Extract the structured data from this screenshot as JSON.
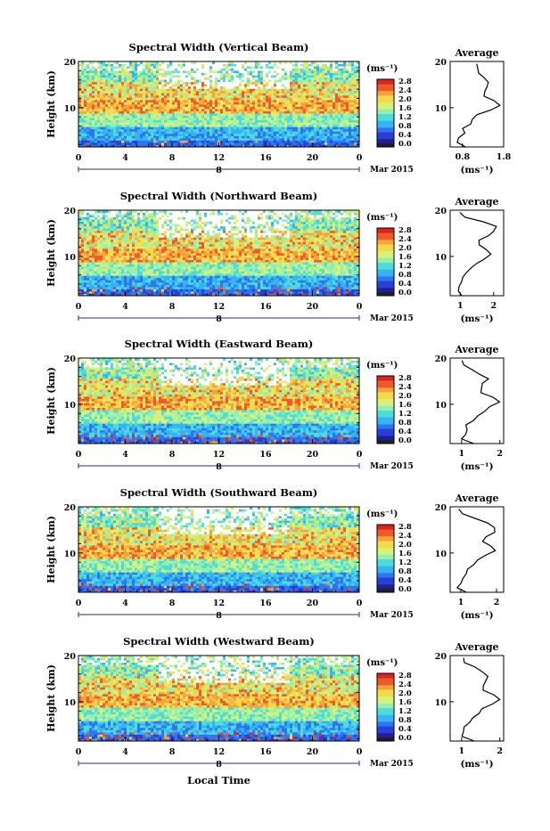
{
  "figure": {
    "x_axis_label": "Local Time",
    "date_label": "Mar 2015",
    "day_label": "8",
    "colorbar_unit": "(ms⁻¹)",
    "profile_unit": "(ms⁻¹)",
    "profile_title": "Average",
    "y_axis_label": "Height (km)",
    "colorbar_ticks": [
      "0.0",
      "0.4",
      "0.8",
      "1.2",
      "1.6",
      "2.0",
      "2.4",
      "2.8"
    ],
    "colormap": [
      "#1f1f9a",
      "#2a3fd6",
      "#2f74f0",
      "#34b4f4",
      "#4fdcd8",
      "#93f0b0",
      "#d6f27a",
      "#f6d94a",
      "#f7a23a",
      "#ee5a2a",
      "#d8261e"
    ],
    "blank_color": "#ffffff"
  },
  "chart_data": [
    {
      "type": "heatmap",
      "title": "Spectral Width (Vertical Beam)",
      "x_ticks": [
        "0",
        "4",
        "8",
        "12",
        "16",
        "20",
        "0"
      ],
      "xlim": [
        0,
        24
      ],
      "y_ticks": [
        "20",
        "10"
      ],
      "ylim": [
        1.5,
        20
      ],
      "colorbar_range": [
        0.0,
        2.8
      ],
      "profile": {
        "title": "Average",
        "x_ticks": [
          "0.8",
          "1.8"
        ],
        "xlim": [
          0.5,
          1.8
        ],
        "y_ticks": [
          "20",
          "10"
        ],
        "heights": [
          1.5,
          2.5,
          3.5,
          4.5,
          5.5,
          6.5,
          7.5,
          8.5,
          9.5,
          10.5,
          11.5,
          12.5,
          13.5,
          14.5,
          15.5,
          16.5,
          17.5,
          18.5,
          19.5
        ],
        "values": [
          0.9,
          0.7,
          0.75,
          0.8,
          0.85,
          0.95,
          1.05,
          1.15,
          1.45,
          1.75,
          1.55,
          1.35,
          1.3,
          1.4,
          1.45,
          1.3,
          1.2,
          1.15,
          1.1
        ]
      }
    },
    {
      "type": "heatmap",
      "title": "Spectral Width (Northward Beam)",
      "x_ticks": [
        "0",
        "4",
        "8",
        "12",
        "16",
        "20",
        "0"
      ],
      "xlim": [
        0,
        24
      ],
      "y_ticks": [
        "20",
        "10"
      ],
      "ylim": [
        1.5,
        20
      ],
      "colorbar_range": [
        0.0,
        2.8
      ],
      "profile": {
        "title": "Average",
        "x_ticks": [
          "1",
          "2"
        ],
        "xlim": [
          0.7,
          2.3
        ],
        "y_ticks": [
          "20",
          "10"
        ],
        "heights": [
          1.5,
          2.5,
          3.5,
          4.5,
          5.5,
          6.5,
          7.5,
          8.5,
          9.5,
          10.5,
          11.5,
          12.5,
          13.5,
          14.5,
          15.5,
          16.5,
          17.5,
          18.5,
          19.5
        ],
        "values": [
          1.1,
          0.9,
          1.0,
          1.05,
          1.1,
          1.2,
          1.35,
          1.5,
          1.7,
          1.95,
          1.75,
          1.55,
          1.6,
          1.9,
          2.05,
          2.1,
          1.7,
          1.2,
          1.0
        ]
      }
    },
    {
      "type": "heatmap",
      "title": "Spectral Width (Eastward Beam)",
      "x_ticks": [
        "0",
        "4",
        "8",
        "12",
        "16",
        "20",
        "0"
      ],
      "xlim": [
        0,
        24
      ],
      "y_ticks": [
        "20",
        "10"
      ],
      "ylim": [
        1.5,
        20
      ],
      "colorbar_range": [
        0.0,
        2.8
      ],
      "profile": {
        "title": "Average",
        "x_ticks": [
          "1",
          "2"
        ],
        "xlim": [
          0.7,
          2.1
        ],
        "y_ticks": [
          "20",
          "10"
        ],
        "heights": [
          1.5,
          2.5,
          3.5,
          4.5,
          5.5,
          6.5,
          7.5,
          8.5,
          9.5,
          10.5,
          11.5,
          12.5,
          13.5,
          14.5,
          15.5,
          16.5,
          17.5,
          18.5,
          19.5
        ],
        "values": [
          1.3,
          1.05,
          1.1,
          1.1,
          1.15,
          1.25,
          1.4,
          1.55,
          1.75,
          1.95,
          1.8,
          1.55,
          1.5,
          1.6,
          1.75,
          1.5,
          1.3,
          1.1,
          1.0
        ]
      }
    },
    {
      "type": "heatmap",
      "title": "Spectral Width (Southward Beam)",
      "x_ticks": [
        "0",
        "4",
        "8",
        "12",
        "16",
        "20",
        "0"
      ],
      "xlim": [
        0,
        24
      ],
      "y_ticks": [
        "20",
        "10"
      ],
      "ylim": [
        1.5,
        20
      ],
      "colorbar_range": [
        0.0,
        2.8
      ],
      "profile": {
        "title": "Average",
        "x_ticks": [
          "1",
          "2"
        ],
        "xlim": [
          0.7,
          2.2
        ],
        "y_ticks": [
          "20",
          "10"
        ],
        "heights": [
          1.5,
          2.5,
          3.5,
          4.5,
          5.5,
          6.5,
          7.5,
          8.5,
          9.5,
          10.5,
          11.5,
          12.5,
          13.5,
          14.5,
          15.5,
          16.5,
          17.5,
          18.5,
          19.5
        ],
        "values": [
          1.2,
          0.95,
          1.0,
          1.05,
          1.1,
          1.2,
          1.35,
          1.5,
          1.7,
          1.95,
          1.8,
          1.6,
          1.65,
          1.9,
          2.0,
          1.8,
          1.45,
          1.1,
          0.95
        ]
      }
    },
    {
      "type": "heatmap",
      "title": "Spectral Width (Westward Beam)",
      "x_ticks": [
        "0",
        "4",
        "8",
        "12",
        "16",
        "20",
        "0"
      ],
      "xlim": [
        0,
        24
      ],
      "y_ticks": [
        "20",
        "10"
      ],
      "ylim": [
        1.5,
        20
      ],
      "colorbar_range": [
        0.0,
        2.8
      ],
      "profile": {
        "title": "Average",
        "x_ticks": [
          "1",
          "2"
        ],
        "xlim": [
          0.7,
          2.1
        ],
        "y_ticks": [
          "20",
          "10"
        ],
        "heights": [
          1.5,
          2.5,
          3.5,
          4.5,
          5.5,
          6.5,
          7.5,
          8.5,
          9.5,
          10.5,
          11.5,
          12.5,
          13.5,
          14.5,
          15.5,
          16.5,
          17.5,
          18.5,
          19.5
        ],
        "values": [
          1.3,
          1.0,
          1.05,
          1.1,
          1.15,
          1.25,
          1.4,
          1.55,
          1.75,
          2.0,
          1.85,
          1.6,
          1.55,
          1.6,
          1.7,
          1.5,
          1.3,
          1.1,
          1.0
        ]
      }
    }
  ]
}
